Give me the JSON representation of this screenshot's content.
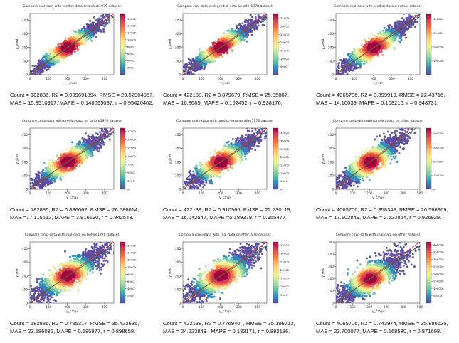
{
  "colors": {
    "red_line": "#d62728",
    "fit_line": "#2f7d32",
    "axes": "#222222"
  },
  "colormap": [
    "#5e4fa2",
    "#3288bd",
    "#66c2a5",
    "#abdda4",
    "#e6f598",
    "#fee08b",
    "#fdae61",
    "#f46d43",
    "#d53e4f",
    "#9e0142"
  ],
  "chart_data": [
    {
      "type": "heatmap",
      "title": "Compare real-data with predict-data on before1970 dataset",
      "xlabel": "y_real",
      "ylabel": "y_pred",
      "xticks": [
        "0",
        "100",
        "200",
        "300",
        "400"
      ],
      "yticks": [
        "0",
        "100",
        "200",
        "300",
        "400"
      ],
      "xlim": [
        0,
        450
      ],
      "ylim": [
        0,
        450
      ],
      "colorbar_ticks": [
        "2000",
        "4000",
        "6000",
        "8000",
        "10000",
        "12000",
        "14000",
        "16000"
      ],
      "colorbar_max": 17500,
      "stats_line1": "Count = 182886, R2 = 0.909691894, RMSE = 23.52904067,",
      "stats_line2": "MAE = 15.3510917, MAPE = 0.148095037, r = 0.95420402."
    },
    {
      "type": "heatmap",
      "title": "Compare real-data with predict-data on after1970 dataset",
      "xlabel": "y_real",
      "ylabel": "y_pred",
      "xticks": [
        "0",
        "100",
        "200",
        "300",
        "400"
      ],
      "yticks": [
        "0",
        "100",
        "200",
        "300",
        "400"
      ],
      "xlim": [
        0,
        450
      ],
      "ylim": [
        0,
        450
      ],
      "colorbar_ticks": [
        "5000",
        "10000",
        "15000",
        "20000",
        "25000",
        "30000",
        "35000"
      ],
      "colorbar_max": 38000,
      "stats_line1": "Count = 422138, R2 = 0.879679, RMSE = 25.85007,",
      "stats_line2": "MAE = 16.3685, MAPE = 0.162452, r = 0.938176."
    },
    {
      "type": "heatmap",
      "title": "Compare real-data with predict-data on other dataset",
      "xlabel": "y_real",
      "ylabel": "y_pred",
      "xticks": [
        "0",
        "100",
        "200",
        "300",
        "400"
      ],
      "yticks": [
        "0",
        "100",
        "200",
        "300",
        "400"
      ],
      "xlim": [
        0,
        450
      ],
      "ylim": [
        0,
        450
      ],
      "colorbar_ticks": [
        "100000",
        "200000",
        "300000",
        "400000"
      ],
      "colorbar_max": 440000,
      "stats_line1": "Count = 4065706, R2 = 0.899919, RMSE = 22.43716,",
      "stats_line2": "MAE = 14.10039, MAPE = 0.108215, r = 0.948731."
    },
    {
      "type": "heatmap",
      "title": "Compare cmip-data with predict-data on before1970 dataset",
      "xlabel": "y_cmip",
      "ylabel": "y_pred",
      "xticks": [
        "0",
        "100",
        "200",
        "300",
        "400"
      ],
      "yticks": [
        "0",
        "100",
        "200",
        "300",
        "400"
      ],
      "xlim": [
        0,
        450
      ],
      "ylim": [
        0,
        450
      ],
      "colorbar_ticks": [
        "0",
        "2500",
        "5000",
        "7500",
        "10000",
        "12500",
        "15000",
        "17500"
      ],
      "colorbar_max": 18500,
      "stats_line1": "Count = 182886, R2 = 0.886662, RMSE = 26.586614,",
      "stats_line2": "MAE =17.115612, MAPE = 3.816130, r = 0.942543."
    },
    {
      "type": "heatmap",
      "title": "Compare cmip-data with predict-data on after1970 dataset",
      "xlabel": "y_cmip",
      "ylabel": "y_pred",
      "xticks": [
        "0",
        "100",
        "200",
        "300",
        "400"
      ],
      "yticks": [
        "0",
        "100",
        "200",
        "300",
        "400"
      ],
      "xlim": [
        0,
        450
      ],
      "ylim": [
        0,
        450
      ],
      "colorbar_ticks": [
        "0",
        "5000",
        "10000",
        "15000",
        "20000",
        "25000",
        "30000",
        "35000"
      ],
      "colorbar_max": 38000,
      "stats_line1": "Count = 422138, R2 = 0.910966, RMSE = 22.730119,",
      "stats_line2": "MAE = 16.042547, MAPE =5.189379, r = 0.955477."
    },
    {
      "type": "heatmap",
      "title": "Compare cmip-data with predict-data on other dataset",
      "xlabel": "y_cmip",
      "ylabel": "y_pred",
      "xticks": [
        "0",
        "100",
        "200",
        "300",
        "400",
        "500"
      ],
      "yticks": [
        "0",
        "100",
        "200",
        "300",
        "400"
      ],
      "xlim": [
        0,
        500
      ],
      "ylim": [
        0,
        450
      ],
      "colorbar_ticks": [
        "0",
        "100000",
        "200000",
        "300000",
        "400000"
      ],
      "colorbar_max": 440000,
      "stats_line1": "Count = 4065706, R2 = 0.858348, RMSE = 26.566969,",
      "stats_line2": "MAE = 17.102849, MAPE = 2.623854, r = 0.926939."
    },
    {
      "type": "heatmap",
      "title": "Compare cmip-data with real-data on before1970 dataset",
      "xlabel": "y_cmip",
      "ylabel": "y_real",
      "xticks": [
        "0",
        "100",
        "200",
        "300",
        "400"
      ],
      "yticks": [
        "0",
        "100",
        "200",
        "300",
        "400"
      ],
      "xlim": [
        0,
        450
      ],
      "ylim": [
        0,
        450
      ],
      "colorbar_ticks": [
        "2000",
        "4000",
        "6000",
        "8000",
        "10000",
        "12000",
        "14000",
        "16000"
      ],
      "colorbar_max": 17000,
      "stats_line1": "Count = 182886, R2 = 0.795317, RMSE = 35.422635,",
      "stats_line2": "MAE = 23.686032, MAPE = 0.185977, r = 0.898658."
    },
    {
      "type": "heatmap",
      "title": "Compare cmip-data with real-data on after1970 dataset",
      "xlabel": "y_cmip",
      "ylabel": "y_real",
      "xticks": [
        "0",
        "100",
        "200",
        "300",
        "400"
      ],
      "yticks": [
        "0",
        "100",
        "200",
        "300",
        "400"
      ],
      "xlim": [
        0,
        450
      ],
      "ylim": [
        0,
        450
      ],
      "colorbar_ticks": [
        "5000",
        "10000",
        "15000",
        "20000",
        "25000",
        "30000",
        "35000"
      ],
      "colorbar_max": 37000,
      "stats_line1": "Count = 422138, R2 = 0.776940, , RMSE = 35.196713,",
      "stats_line2": "MAE = 24.223848 , MAPE = 0.182171, r = 0.892186."
    },
    {
      "type": "heatmap",
      "title": "Compare cmip-data with real-data on other dataset",
      "xlabel": "y_cmip",
      "ylabel": "y_real",
      "xticks": [
        "0",
        "100",
        "200",
        "300",
        "400",
        "500"
      ],
      "yticks": [
        "0",
        "100",
        "200",
        "300",
        "400",
        "500"
      ],
      "xlim": [
        0,
        500
      ],
      "ylim": [
        0,
        500
      ],
      "colorbar_ticks": [
        "50000",
        "100000",
        "150000",
        "200000",
        "250000",
        "300000",
        "350000",
        "400000"
      ],
      "colorbar_max": 420000,
      "stats_line1": "Count = 4065706, R2 = 0.743974, RMSE = 35.886625,",
      "stats_line2": "MAE = 23.700077, MAPE = 0.168580, r = 0.871698."
    }
  ]
}
